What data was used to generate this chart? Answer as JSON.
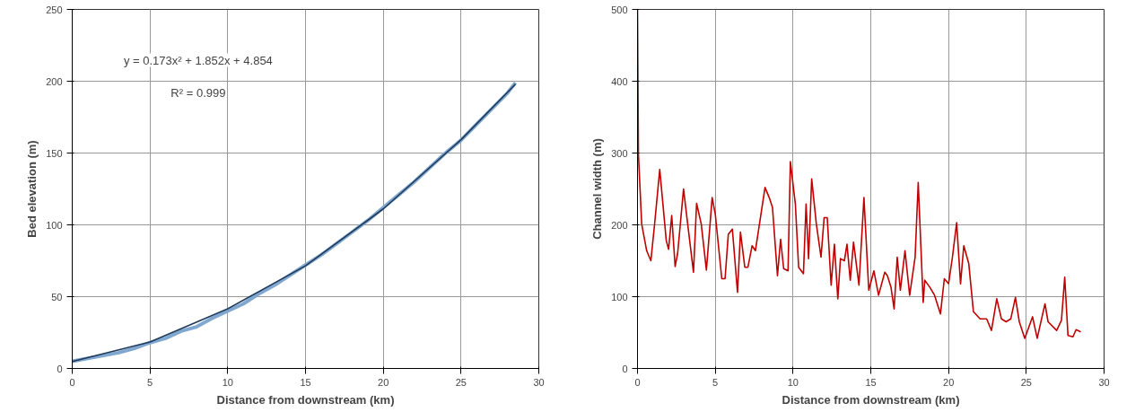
{
  "chart_data": [
    {
      "type": "line",
      "xlabel": "Distance from downstream (km)",
      "ylabel": "Bed elevation (m)",
      "annotations": [
        "y = 0.173x² + 1.852x + 4.854",
        "R² = 0.999"
      ],
      "series": [
        {
          "color": "#7fa7d0",
          "x": [
            0,
            1,
            2,
            3,
            4,
            5,
            6,
            7,
            8,
            9,
            10,
            11,
            12,
            13,
            14,
            15,
            16,
            17,
            18,
            19,
            20,
            21,
            22,
            23,
            24,
            25,
            26,
            27,
            28,
            28.5
          ],
          "values": [
            5,
            7,
            9,
            11,
            14,
            18,
            21,
            26,
            29,
            35,
            40,
            45,
            52,
            58,
            65,
            72,
            79,
            87,
            95,
            103,
            112,
            121,
            130,
            140,
            150,
            159,
            170,
            181,
            192,
            199
          ]
        },
        {
          "color": "#1f3a5a",
          "x": [
            0,
            5,
            10,
            15,
            20,
            25,
            28.5
          ],
          "values": [
            4.9,
            18.4,
            41.6,
            71.5,
            111.1,
            159.3,
            198
          ]
        }
      ],
      "xlim": [
        0,
        30
      ],
      "xticks": [
        0,
        5,
        10,
        15,
        20,
        25,
        30
      ],
      "ylim": [
        0,
        250
      ],
      "yticks": [
        0,
        50,
        100,
        150,
        200,
        250
      ],
      "grid": true
    },
    {
      "type": "line",
      "xlabel": "Distance from downstream (km)",
      "ylabel": "Channel width (m)",
      "series": [
        {
          "color": "#c00000",
          "x": [
            0,
            0.06,
            0.27,
            0.59,
            0.86,
            1.1,
            1.43,
            1.85,
            2.0,
            2.2,
            2.42,
            2.58,
            2.96,
            3.2,
            3.6,
            3.8,
            4.1,
            4.43,
            4.8,
            5.0,
            5.42,
            5.63,
            5.84,
            6.1,
            6.43,
            6.62,
            6.9,
            7.1,
            7.37,
            7.58,
            8.2,
            8.47,
            8.68,
            9.0,
            9.2,
            9.4,
            9.68,
            9.83,
            10.15,
            10.36,
            10.67,
            10.84,
            11.0,
            11.2,
            11.5,
            11.8,
            12.0,
            12.2,
            12.45,
            12.66,
            12.88,
            13.05,
            13.3,
            13.47,
            13.68,
            13.89,
            14.24,
            14.56,
            14.87,
            15.2,
            15.5,
            15.9,
            16.07,
            16.3,
            16.5,
            16.7,
            16.9,
            17.2,
            17.5,
            17.85,
            18.05,
            18.37,
            18.47,
            18.8,
            19.1,
            19.48,
            19.73,
            20.0,
            20.25,
            20.52,
            20.77,
            20.98,
            21.3,
            21.6,
            22.03,
            22.45,
            22.76,
            23.1,
            23.4,
            23.7,
            24.0,
            24.3,
            24.55,
            24.9,
            25.4,
            25.7,
            26.2,
            26.4,
            26.95,
            27.26,
            27.47,
            27.68,
            28.0,
            28.2,
            28.5
          ],
          "values": [
            500,
            298,
            201,
            164,
            150,
            201,
            277,
            178,
            166,
            213,
            142,
            160,
            250,
            206,
            134,
            230,
            201,
            137,
            238,
            215,
            125,
            125,
            187,
            194,
            106,
            190,
            141,
            141,
            171,
            164,
            252,
            238,
            224,
            129,
            180,
            139,
            136,
            288,
            229,
            141,
            132,
            229,
            153,
            264,
            201,
            155,
            210,
            210,
            116,
            173,
            97,
            153,
            150,
            173,
            123,
            176,
            116,
            238,
            109,
            136,
            102,
            134,
            129,
            113,
            83,
            155,
            109,
            164,
            102,
            155,
            259,
            92,
            123,
            113,
            102,
            76,
            125,
            118,
            155,
            203,
            118,
            171,
            146,
            79,
            69,
            69,
            53,
            97,
            69,
            65,
            69,
            99,
            65,
            42,
            72,
            42,
            90,
            65,
            53,
            67,
            127,
            46,
            44,
            54,
            51
          ]
        }
      ],
      "xlim": [
        0,
        30
      ],
      "xticks": [
        0,
        5,
        10,
        15,
        20,
        25,
        30
      ],
      "ylim": [
        0,
        500
      ],
      "yticks": [
        0,
        100,
        200,
        300,
        400,
        500
      ],
      "grid": true
    }
  ]
}
